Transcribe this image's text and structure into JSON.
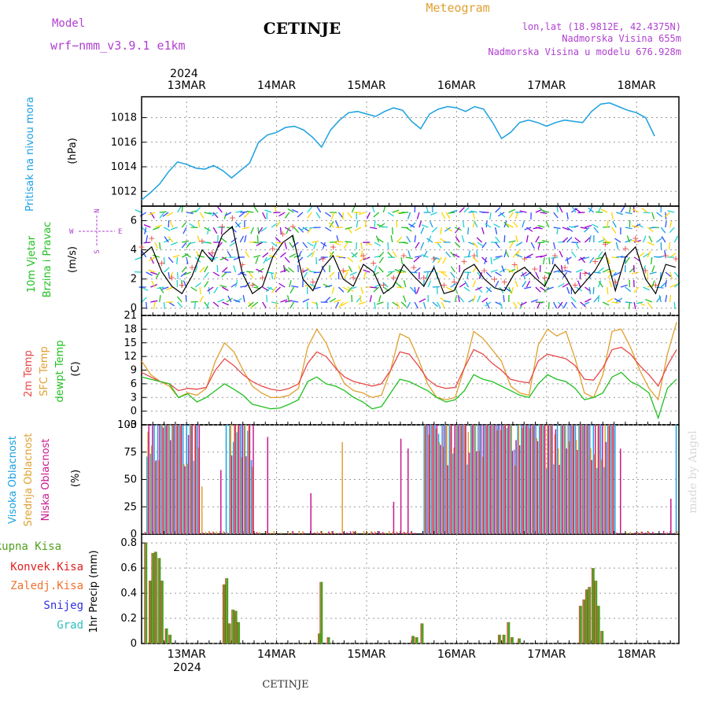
{
  "header": {
    "model_label": "Model",
    "model_name": "wrf−nmm_v3.9.1 e1km",
    "station": "CETINJE",
    "product": "Meteogram",
    "location": "lon,lat (18.9812E, 42.4375N)",
    "elevation": "Nadmorska Visina 655m",
    "model_elevation": "Nadmorska Visina u modelu 676.928m",
    "year_top": "2024",
    "year_bottom": "2024",
    "footer": "CETINJE",
    "watermark": "made by Angel"
  },
  "colors": {
    "pressure": "#1aa0e0",
    "temp2m": "#e84848",
    "sfc": "#e0a030",
    "dew": "#20c020",
    "cloud_high": "#1aa0e0",
    "cloud_mid": "#e0a030",
    "cloud_low": "#c81890",
    "precip_total": "#50a020",
    "precip_conv": "#e02020",
    "precip_strat": "#f07030",
    "snow": "#3030e0",
    "grad": "#30c0c0",
    "model_label": "#b040d0"
  },
  "chart_data": {
    "type": "line",
    "x_ticks": [
      "13MAR",
      "14MAR",
      "15MAR",
      "16MAR",
      "17MAR",
      "18MAR"
    ],
    "panels": {
      "pressure": {
        "ylabel": "Pritisak na nivou mora",
        "unit": "(hPa)",
        "yticks": [
          1012,
          1014,
          1016,
          1018
        ],
        "ylim": [
          1010.8,
          1019.7
        ],
        "series": [
          1011.3,
          1011.9,
          1012.6,
          1013.6,
          1014.4,
          1014.2,
          1013.9,
          1013.8,
          1014.1,
          1013.7,
          1013.1,
          1013.7,
          1014.3,
          1016.0,
          1016.6,
          1016.8,
          1017.2,
          1017.3,
          1017.0,
          1016.4,
          1015.6,
          1017.0,
          1017.8,
          1018.4,
          1018.5,
          1018.3,
          1018.1,
          1018.5,
          1018.8,
          1018.6,
          1017.7,
          1017.1,
          1018.3,
          1018.7,
          1018.9,
          1018.8,
          1018.5,
          1018.9,
          1018.7,
          1017.6,
          1016.3,
          1016.8,
          1017.6,
          1017.8,
          1017.6,
          1017.3,
          1017.6,
          1017.8,
          1017.7,
          1017.6,
          1018.5,
          1019.1,
          1019.2,
          1018.9,
          1018.6,
          1018.4,
          1018.0,
          1016.5
        ],
        "x_start": 12.5,
        "x_step": 0.1
      },
      "wind": {
        "ylabel": "10m Vjetar",
        "ylabel2": "Brzina i Pravac",
        "unit": "(m/s)",
        "compass_n": "N",
        "compass_s": "S",
        "compass_w": "W",
        "compass_e": "E",
        "yticks": [
          0,
          2,
          4,
          6
        ],
        "ylim": [
          -0.5,
          7.0
        ],
        "series": [
          3.6,
          4.2,
          2.5,
          1.5,
          1.0,
          2.2,
          4.0,
          3.2,
          5.0,
          5.6,
          2.4,
          1.0,
          1.5,
          3.5,
          4.5,
          5.0,
          2.0,
          1.2,
          2.8,
          3.6,
          2.0,
          1.5,
          3.0,
          2.5,
          1.0,
          1.5,
          3.0,
          2.2,
          1.5,
          2.8,
          1.0,
          1.2,
          2.6,
          3.0,
          2.0,
          1.4,
          1.2,
          2.4,
          2.8,
          2.1,
          1.5,
          3.0,
          2.2,
          1.0,
          1.8,
          2.6,
          3.8,
          1.2,
          3.5,
          4.2,
          2.0,
          1.0,
          3.0,
          2.8
        ],
        "x_start": 12.5,
        "x_step": 0.112
      },
      "temperature": {
        "ylabel_2m": "2m Temp",
        "ylabel_sfc": "SFC Temp",
        "ylabel_dew": "dewpt Temp",
        "unit": "(C)",
        "yticks": [
          -3,
          0,
          3,
          6,
          9,
          12,
          15,
          18,
          21
        ],
        "ylim": [
          -3,
          21
        ],
        "temp2m": [
          8.5,
          7.5,
          6.5,
          6.0,
          4.5,
          5.0,
          4.8,
          5.2,
          9.0,
          11.5,
          10.0,
          8.0,
          6.5,
          5.5,
          4.8,
          4.5,
          5.0,
          6.0,
          10.5,
          13.0,
          12.0,
          9.5,
          7.5,
          6.5,
          6.0,
          5.5,
          6.0,
          9.0,
          13.0,
          12.5,
          10.0,
          7.0,
          5.5,
          5.0,
          5.2,
          9.5,
          13.5,
          12.5,
          10.5,
          9.0,
          7.0,
          6.5,
          6.2,
          11.0,
          12.5,
          12.0,
          11.5,
          10.0,
          7.0,
          6.8,
          9.5,
          13.5,
          14.0,
          12.5,
          10.0,
          8.0,
          5.5,
          10.0,
          13.5
        ],
        "sfc": [
          11.0,
          8.0,
          6.5,
          5.5,
          3.0,
          4.0,
          3.5,
          5.0,
          11.0,
          15.0,
          13.0,
          9.0,
          5.5,
          4.0,
          3.0,
          3.0,
          3.5,
          5.0,
          14.0,
          18.0,
          15.0,
          10.0,
          6.0,
          4.5,
          4.0,
          3.0,
          3.5,
          9.0,
          17.0,
          16.0,
          11.5,
          6.0,
          3.0,
          2.5,
          3.0,
          9.5,
          17.5,
          16.0,
          13.5,
          11.0,
          5.5,
          4.0,
          3.5,
          14.5,
          18.0,
          16.5,
          17.5,
          11.5,
          4.0,
          3.0,
          8.0,
          17.5,
          18.0,
          14.0,
          9.0,
          5.0,
          2.5,
          12.5,
          19.5
        ],
        "dew": [
          7.5,
          7.0,
          6.5,
          6.0,
          3.0,
          3.8,
          2.0,
          3.0,
          4.5,
          6.0,
          4.8,
          3.5,
          1.5,
          1.0,
          0.5,
          0.7,
          1.5,
          2.5,
          6.5,
          7.5,
          6.0,
          5.5,
          4.5,
          3.0,
          2.0,
          0.5,
          1.0,
          4.0,
          7.0,
          6.5,
          5.5,
          4.5,
          3.0,
          2.0,
          2.5,
          4.5,
          8.0,
          7.0,
          6.5,
          5.5,
          4.5,
          3.5,
          3.0,
          6.0,
          8.0,
          7.0,
          6.5,
          5.0,
          2.5,
          3.0,
          4.0,
          7.5,
          8.5,
          6.5,
          5.5,
          4.0,
          -1.5,
          5.0,
          7.0
        ],
        "x_start": 12.5,
        "x_step": 0.1025
      },
      "cloud": {
        "ylabel_high": "Visoka Oblacnost",
        "ylabel_mid": "Srednja Oblacnost",
        "ylabel_low": "Niska Oblacnost",
        "unit": "(%)",
        "yticks": [
          0,
          25,
          50,
          75,
          100
        ],
        "ylim": [
          0,
          100
        ]
      },
      "precip": {
        "legend_total": "Ukupna Kisa",
        "legend_conv": "Konvek.Kisa",
        "legend_strat": "Zaledj.Kisa",
        "legend_snow": "Snijeg",
        "legend_grad": "Grad",
        "ylabel": "1hr Precip (mm)",
        "yticks": [
          0,
          0.2,
          0.4,
          0.6,
          0.8
        ],
        "ylim": [
          0,
          0.87
        ],
        "bars": [
          [
            12.55,
            0.8
          ],
          [
            12.6,
            0.5
          ],
          [
            12.63,
            0.72
          ],
          [
            12.66,
            0.73
          ],
          [
            12.7,
            0.68
          ],
          [
            12.73,
            0.5
          ],
          [
            12.78,
            0.12
          ],
          [
            12.82,
            0.07
          ],
          [
            13.42,
            0.47
          ],
          [
            13.45,
            0.52
          ],
          [
            13.48,
            0.16
          ],
          [
            13.52,
            0.27
          ],
          [
            13.55,
            0.26
          ],
          [
            13.58,
            0.17
          ],
          [
            14.5,
            0.49
          ],
          [
            14.48,
            0.08
          ],
          [
            14.58,
            0.05
          ],
          [
            15.52,
            0.06
          ],
          [
            15.56,
            0.05
          ],
          [
            15.62,
            0.16
          ],
          [
            16.48,
            0.07
          ],
          [
            16.53,
            0.07
          ],
          [
            16.58,
            0.17
          ],
          [
            16.62,
            0.05
          ],
          [
            16.7,
            0.04
          ],
          [
            17.38,
            0.3
          ],
          [
            17.42,
            0.35
          ],
          [
            17.45,
            0.43
          ],
          [
            17.48,
            0.45
          ],
          [
            17.52,
            0.6
          ],
          [
            17.55,
            0.5
          ],
          [
            17.58,
            0.3
          ],
          [
            17.62,
            0.1
          ]
        ]
      }
    }
  }
}
